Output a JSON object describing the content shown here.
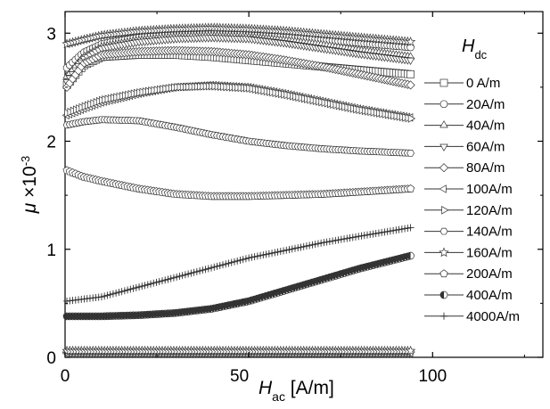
{
  "chart_data": {
    "type": "scatter",
    "xlabel": {
      "symbol": "H",
      "sub": "ac",
      "unit": " [A/m]"
    },
    "ylabel": {
      "symbol": "μ",
      "rest": " ×10",
      "sup": "-3"
    },
    "xlim": [
      0,
      130
    ],
    "ylim": [
      0,
      3.2
    ],
    "xticks": [
      {
        "value": 0,
        "label": "0"
      },
      {
        "value": 50,
        "label": "50"
      },
      {
        "value": 100,
        "label": "100"
      }
    ],
    "yticks": [
      {
        "value": 0,
        "label": "0"
      },
      {
        "value": 1,
        "label": "1"
      },
      {
        "value": 2,
        "label": "2"
      },
      {
        "value": 3,
        "label": "3"
      }
    ],
    "legend": {
      "title_symbol": "H",
      "title_sub": "dc",
      "placement": "right"
    },
    "series": [
      {
        "name": "0 A/m",
        "marker": "square",
        "points": [
          [
            0.5,
            2.52
          ],
          [
            5,
            2.7
          ],
          [
            10,
            2.78
          ],
          [
            20,
            2.8
          ],
          [
            30,
            2.8
          ],
          [
            40,
            2.78
          ],
          [
            50,
            2.75
          ],
          [
            60,
            2.72
          ],
          [
            70,
            2.69
          ],
          [
            80,
            2.66
          ],
          [
            94,
            2.62
          ]
        ]
      },
      {
        "name": "20A/m",
        "marker": "circle",
        "points": [
          [
            0.5,
            2.68
          ],
          [
            5,
            2.82
          ],
          [
            10,
            2.9
          ],
          [
            20,
            2.96
          ],
          [
            30,
            3.0
          ],
          [
            40,
            3.0
          ],
          [
            50,
            2.99
          ],
          [
            60,
            2.97
          ],
          [
            70,
            2.94
          ],
          [
            80,
            2.91
          ],
          [
            94,
            2.87
          ]
        ]
      },
      {
        "name": "40A/m",
        "marker": "triangle-up",
        "points": [
          [
            0.5,
            2.6
          ],
          [
            5,
            2.78
          ],
          [
            10,
            2.87
          ],
          [
            20,
            2.93
          ],
          [
            30,
            2.96
          ],
          [
            40,
            2.97
          ],
          [
            50,
            2.96
          ],
          [
            60,
            2.93
          ],
          [
            70,
            2.89
          ],
          [
            80,
            2.84
          ],
          [
            94,
            2.78
          ]
        ]
      },
      {
        "name": "60A/m",
        "marker": "triangle-down",
        "points": [
          [
            0.5,
            2.55
          ],
          [
            5,
            2.76
          ],
          [
            10,
            2.86
          ],
          [
            20,
            2.92
          ],
          [
            30,
            2.95
          ],
          [
            40,
            2.96
          ],
          [
            50,
            2.95
          ],
          [
            60,
            2.91
          ],
          [
            70,
            2.86
          ],
          [
            80,
            2.81
          ],
          [
            94,
            2.75
          ]
        ]
      },
      {
        "name": "80A/m",
        "marker": "diamond",
        "points": [
          [
            0.5,
            2.5
          ],
          [
            5,
            2.72
          ],
          [
            10,
            2.8
          ],
          [
            20,
            2.83
          ],
          [
            30,
            2.84
          ],
          [
            40,
            2.83
          ],
          [
            50,
            2.8
          ],
          [
            60,
            2.75
          ],
          [
            70,
            2.69
          ],
          [
            80,
            2.62
          ],
          [
            94,
            2.52
          ]
        ]
      },
      {
        "name": "100A/m",
        "marker": "triangle-left",
        "points": [
          [
            0.5,
            2.24
          ],
          [
            5,
            2.3
          ],
          [
            10,
            2.36
          ],
          [
            20,
            2.44
          ],
          [
            30,
            2.5
          ],
          [
            40,
            2.52
          ],
          [
            50,
            2.5
          ],
          [
            60,
            2.44
          ],
          [
            70,
            2.37
          ],
          [
            80,
            2.3
          ],
          [
            94,
            2.22
          ]
        ]
      },
      {
        "name": "120A/m",
        "marker": "triangle-right",
        "points": [
          [
            0.5,
            2.26
          ],
          [
            5,
            2.32
          ],
          [
            10,
            2.38
          ],
          [
            20,
            2.45
          ],
          [
            30,
            2.5
          ],
          [
            40,
            2.51
          ],
          [
            50,
            2.49
          ],
          [
            60,
            2.43
          ],
          [
            70,
            2.36
          ],
          [
            80,
            2.29
          ],
          [
            94,
            2.21
          ]
        ]
      },
      {
        "name": "140A/m",
        "marker": "hexagon",
        "points": [
          [
            0.5,
            2.15
          ],
          [
            5,
            2.18
          ],
          [
            10,
            2.2
          ],
          [
            20,
            2.19
          ],
          [
            30,
            2.13
          ],
          [
            40,
            2.06
          ],
          [
            50,
            2.0
          ],
          [
            60,
            1.96
          ],
          [
            70,
            1.93
          ],
          [
            80,
            1.91
          ],
          [
            94,
            1.89
          ]
        ]
      },
      {
        "name": "160A/m",
        "marker": "star",
        "points": [
          [
            0.5,
            2.9
          ],
          [
            5,
            2.94
          ],
          [
            10,
            2.98
          ],
          [
            20,
            3.02
          ],
          [
            30,
            3.04
          ],
          [
            40,
            3.05
          ],
          [
            50,
            3.04
          ],
          [
            60,
            3.02
          ],
          [
            70,
            2.99
          ],
          [
            80,
            2.96
          ],
          [
            94,
            2.92
          ]
        ]
      },
      {
        "name": "200A/m",
        "marker": "pentagon",
        "points": [
          [
            0.5,
            1.73
          ],
          [
            5,
            1.67
          ],
          [
            10,
            1.63
          ],
          [
            20,
            1.56
          ],
          [
            30,
            1.51
          ],
          [
            40,
            1.49
          ],
          [
            50,
            1.49
          ],
          [
            60,
            1.5
          ],
          [
            70,
            1.51
          ],
          [
            80,
            1.53
          ],
          [
            94,
            1.56
          ]
        ]
      },
      {
        "name": "400A/m",
        "marker": "circle-half",
        "points": [
          [
            0.5,
            0.38
          ],
          [
            10,
            0.38
          ],
          [
            20,
            0.39
          ],
          [
            30,
            0.41
          ],
          [
            40,
            0.45
          ],
          [
            50,
            0.52
          ],
          [
            60,
            0.62
          ],
          [
            70,
            0.72
          ],
          [
            80,
            0.82
          ],
          [
            94,
            0.94
          ]
        ]
      },
      {
        "name": "4000A/m",
        "marker": "plus",
        "points": [
          [
            0.5,
            0.52
          ],
          [
            10,
            0.56
          ],
          [
            20,
            0.65
          ],
          [
            30,
            0.74
          ],
          [
            40,
            0.83
          ],
          [
            50,
            0.92
          ],
          [
            60,
            0.99
          ],
          [
            70,
            1.06
          ],
          [
            80,
            1.12
          ],
          [
            94,
            1.2
          ]
        ]
      },
      {
        "name": "",
        "marker": "diamond",
        "points": [
          [
            0.5,
            0.05
          ],
          [
            94,
            0.05
          ]
        ]
      },
      {
        "name": "",
        "marker": "triangle-left",
        "points": [
          [
            0.5,
            0.04
          ],
          [
            94,
            0.04
          ]
        ]
      },
      {
        "name": "",
        "marker": "star",
        "points": [
          [
            0.5,
            0.06
          ],
          [
            94,
            0.06
          ]
        ]
      }
    ]
  }
}
